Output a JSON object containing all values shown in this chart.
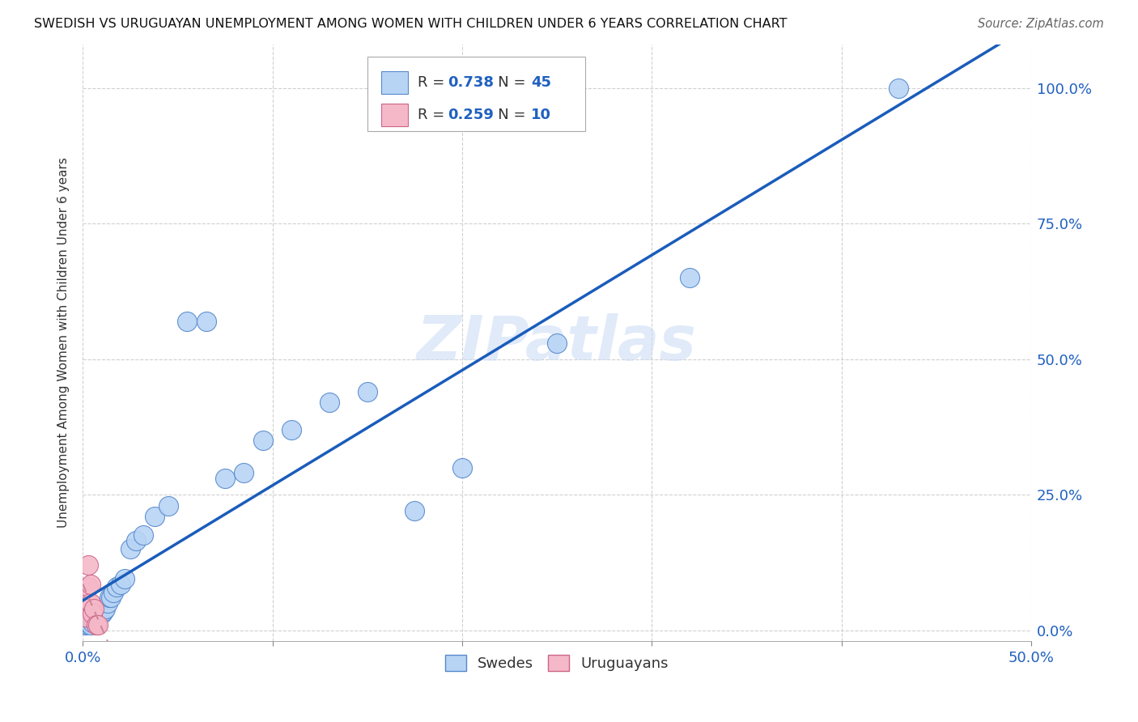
{
  "title": "SWEDISH VS URUGUAYAN UNEMPLOYMENT AMONG WOMEN WITH CHILDREN UNDER 6 YEARS CORRELATION CHART",
  "source": "Source: ZipAtlas.com",
  "ylabel_label": "Unemployment Among Women with Children Under 6 years",
  "xlim": [
    0.0,
    0.5
  ],
  "ylim": [
    -0.02,
    1.08
  ],
  "x_tick_vals": [
    0.0,
    0.1,
    0.2,
    0.3,
    0.4,
    0.5
  ],
  "x_tick_labels": [
    "0.0%",
    "",
    "",
    "",
    "",
    "50.0%"
  ],
  "y_tick_vals": [
    0.0,
    0.25,
    0.5,
    0.75,
    1.0
  ],
  "y_tick_labels_right": [
    "0.0%",
    "25.0%",
    "50.0%",
    "75.0%",
    "100.0%"
  ],
  "swedes_x": [
    0.001,
    0.002,
    0.002,
    0.003,
    0.003,
    0.004,
    0.004,
    0.004,
    0.005,
    0.005,
    0.005,
    0.006,
    0.006,
    0.007,
    0.007,
    0.008,
    0.009,
    0.01,
    0.011,
    0.012,
    0.013,
    0.014,
    0.015,
    0.016,
    0.018,
    0.02,
    0.022,
    0.025,
    0.028,
    0.032,
    0.038,
    0.045,
    0.055,
    0.065,
    0.075,
    0.085,
    0.095,
    0.11,
    0.13,
    0.15,
    0.175,
    0.2,
    0.25,
    0.32,
    0.43
  ],
  "swedes_y": [
    0.01,
    0.012,
    0.015,
    0.015,
    0.018,
    0.01,
    0.02,
    0.025,
    0.015,
    0.02,
    0.025,
    0.018,
    0.022,
    0.02,
    0.025,
    0.025,
    0.03,
    0.03,
    0.035,
    0.04,
    0.05,
    0.06,
    0.06,
    0.07,
    0.08,
    0.085,
    0.095,
    0.15,
    0.165,
    0.175,
    0.21,
    0.23,
    0.57,
    0.57,
    0.28,
    0.29,
    0.35,
    0.37,
    0.42,
    0.44,
    0.22,
    0.3,
    0.53,
    0.65,
    1.0
  ],
  "uruguayans_x": [
    0.001,
    0.002,
    0.003,
    0.003,
    0.004,
    0.004,
    0.005,
    0.006,
    0.007,
    0.008
  ],
  "uruguayans_y": [
    0.025,
    0.055,
    0.08,
    0.12,
    0.05,
    0.085,
    0.03,
    0.04,
    0.01,
    0.01
  ],
  "swede_color": "#b8d4f5",
  "uruguayan_color": "#f5b8c8",
  "swede_edge_color": "#5588cc",
  "uruguayan_edge_color": "#cc6688",
  "trend_swede_color": "#1a5cbb",
  "trend_uruguayan_color": "#cc8899",
  "R_swede": 0.738,
  "N_swede": 45,
  "R_uruguayan": 0.259,
  "N_uruguayan": 10,
  "legend_label_swede": "Swedes",
  "legend_label_uruguayan": "Uruguayans",
  "watermark": "ZIPatlas",
  "background_color": "#ffffff",
  "grid_color": "#d0d0d0"
}
